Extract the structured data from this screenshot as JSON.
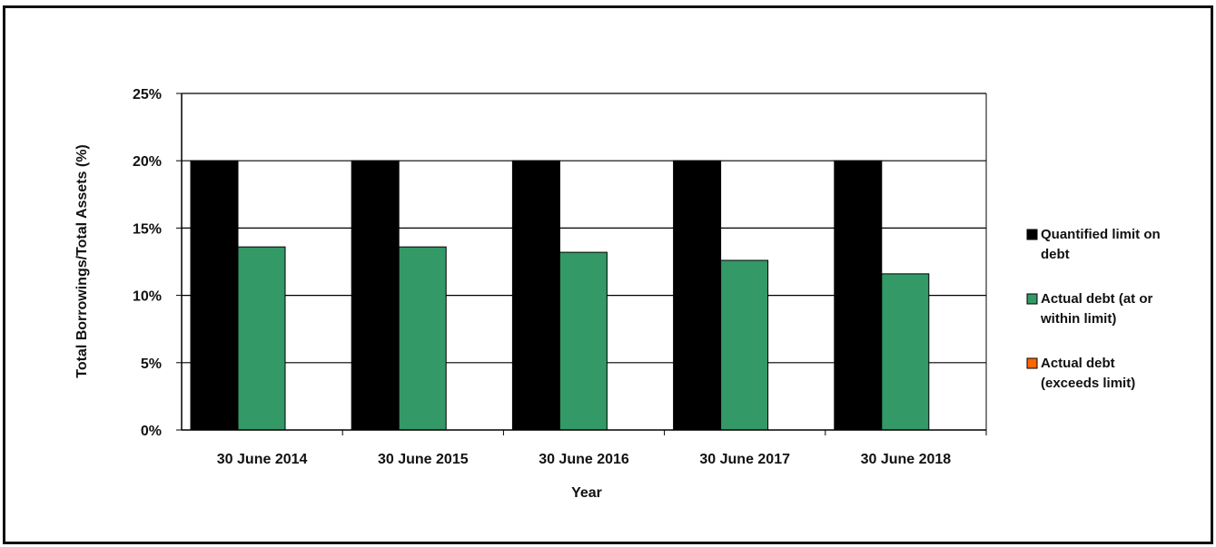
{
  "chart_data": {
    "type": "bar",
    "title": "",
    "xlabel": "Year",
    "ylabel": "Total Borrowings/Total Assets (%)",
    "ylim": [
      0,
      25
    ],
    "yticks": [
      "0%",
      "5%",
      "10%",
      "15%",
      "20%",
      "25%"
    ],
    "ytick_values": [
      0,
      5,
      10,
      15,
      20,
      25
    ],
    "grid": true,
    "legend_position": "right",
    "categories": [
      "30 June 2014",
      "30 June 2015",
      "30 June 2016",
      "30 June 2017",
      "30 June 2018"
    ],
    "series": [
      {
        "name": "Quantified limit on debt",
        "color": "#000000",
        "values": [
          20,
          20,
          20,
          20,
          20
        ]
      },
      {
        "name": "Actual debt (at or within limit)",
        "color": "#339966",
        "values": [
          13.6,
          13.6,
          13.2,
          12.6,
          11.6
        ]
      },
      {
        "name": "Actual debt (exceeds limit)",
        "color": "#ff6600",
        "values": [
          0,
          0,
          0,
          0,
          0
        ]
      }
    ],
    "legend": [
      {
        "lines": [
          "Quantified limit on",
          "debt"
        ],
        "color": "#000000"
      },
      {
        "lines": [
          "Actual debt (at or",
          "within limit)"
        ],
        "color": "#339966"
      },
      {
        "lines": [
          "Actual debt",
          "(exceeds limit)"
        ],
        "color": "#ff6600"
      }
    ]
  }
}
